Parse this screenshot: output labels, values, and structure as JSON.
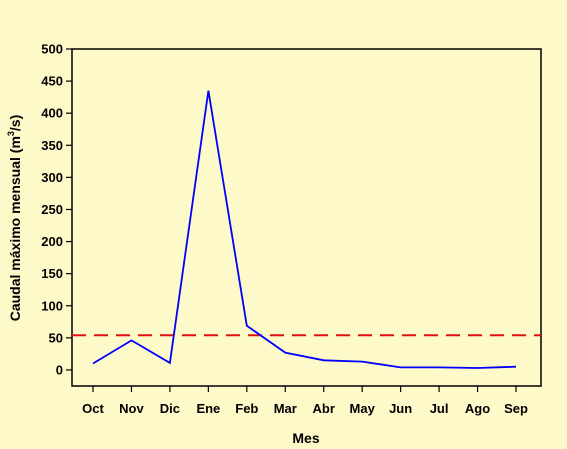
{
  "chart_data": {
    "type": "line",
    "title": "",
    "xlabel": "Mes",
    "ylabel": {
      "prefix": "Caudal máximo mensual (m",
      "superscript": "3",
      "suffix": "/s)"
    },
    "categories": [
      "Oct",
      "Nov",
      "Dic",
      "Ene",
      "Feb",
      "Mar",
      "Abr",
      "May",
      "Jun",
      "Jul",
      "Ago",
      "Sep"
    ],
    "series": [
      {
        "values": [
          10,
          46,
          11,
          435,
          69,
          27,
          15,
          13,
          4,
          4,
          3,
          5
        ],
        "color": "#0000ff"
      }
    ],
    "reference_line": {
      "value": 54,
      "color": "#e01010",
      "style": "dashed"
    },
    "ylim": [
      -25,
      500
    ],
    "yticks": [
      0,
      50,
      100,
      150,
      200,
      250,
      300,
      350,
      400,
      450,
      500
    ],
    "grid": false,
    "legend": "none"
  }
}
